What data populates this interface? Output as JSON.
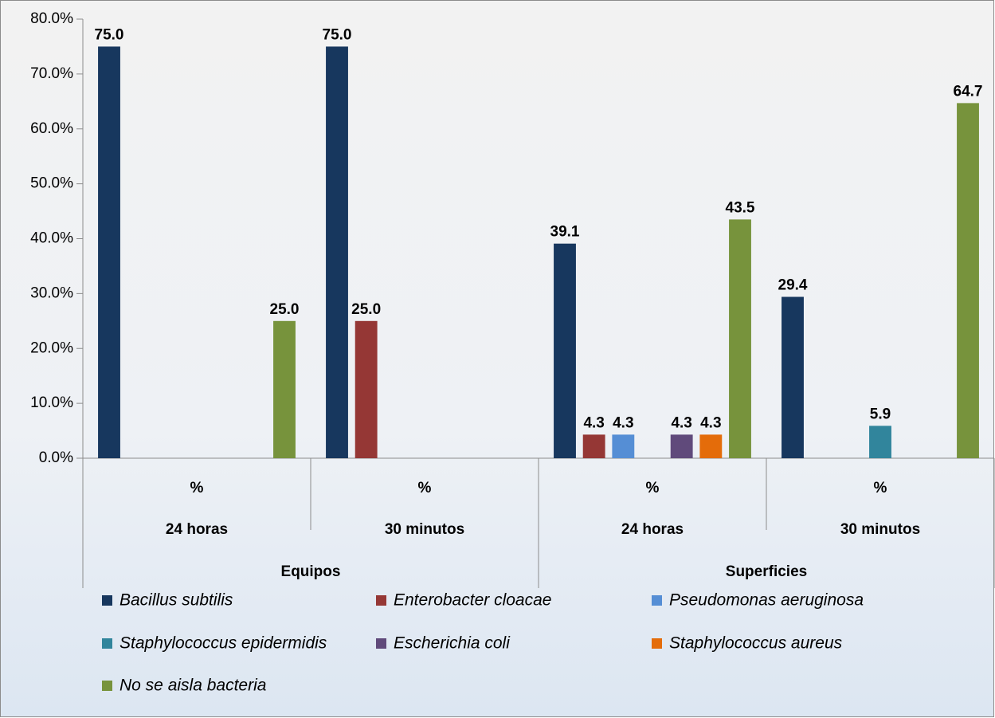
{
  "chart_data": {
    "type": "bar",
    "categories": [
      "%",
      "%",
      "%",
      "%"
    ],
    "subcategories": [
      "24 horas",
      "30 minutos",
      "24 horas",
      "30 minutos"
    ],
    "groups": [
      "Equipos",
      "Superficies"
    ],
    "series": [
      {
        "name": "Bacillus subtilis",
        "color": "#17375e",
        "values": [
          75.0,
          75.0,
          39.1,
          29.4
        ],
        "value_labels": [
          "75.0",
          "75.0",
          "39.1",
          "29.4"
        ]
      },
      {
        "name": "Enterobacter cloacae",
        "color": "#953735",
        "values": [
          null,
          25.0,
          4.3,
          null
        ],
        "value_labels": [
          null,
          "25.0",
          "4.3",
          null
        ]
      },
      {
        "name": "Pseudomonas aeruginosa",
        "color": "#558ed5",
        "values": [
          null,
          null,
          4.3,
          null
        ],
        "value_labels": [
          null,
          null,
          "4.3",
          null
        ]
      },
      {
        "name": "Staphylococcus epidermidis",
        "color": "#31859c",
        "values": [
          null,
          null,
          null,
          5.9
        ],
        "value_labels": [
          null,
          null,
          null,
          "5.9"
        ]
      },
      {
        "name": "Escherichia coli",
        "color": "#604a7b",
        "values": [
          null,
          null,
          4.3,
          null
        ],
        "value_labels": [
          null,
          null,
          "4.3",
          null
        ]
      },
      {
        "name": "Staphylococcus aureus",
        "color": "#e46c0a",
        "values": [
          null,
          null,
          4.3,
          null
        ],
        "value_labels": [
          null,
          null,
          "4.3",
          null
        ]
      },
      {
        "name": "No se aisla bacteria",
        "color": "#77933c",
        "values": [
          25.0,
          null,
          43.5,
          64.7
        ],
        "value_labels": [
          "25.0",
          null,
          "43.5",
          "64.7"
        ]
      }
    ],
    "ylim": [
      0,
      80
    ],
    "yticks": [
      {
        "value": 0,
        "label": "0.0%"
      },
      {
        "value": 10,
        "label": "10.0%"
      },
      {
        "value": 20,
        "label": "20.0%"
      },
      {
        "value": 30,
        "label": "30.0%"
      },
      {
        "value": 40,
        "label": "40.0%"
      },
      {
        "value": 50,
        "label": "50.0%"
      },
      {
        "value": 60,
        "label": "60.0%"
      },
      {
        "value": 70,
        "label": "70.0%"
      },
      {
        "value": 80,
        "label": "80.0%"
      }
    ],
    "grid": false,
    "legend": "bottom"
  }
}
